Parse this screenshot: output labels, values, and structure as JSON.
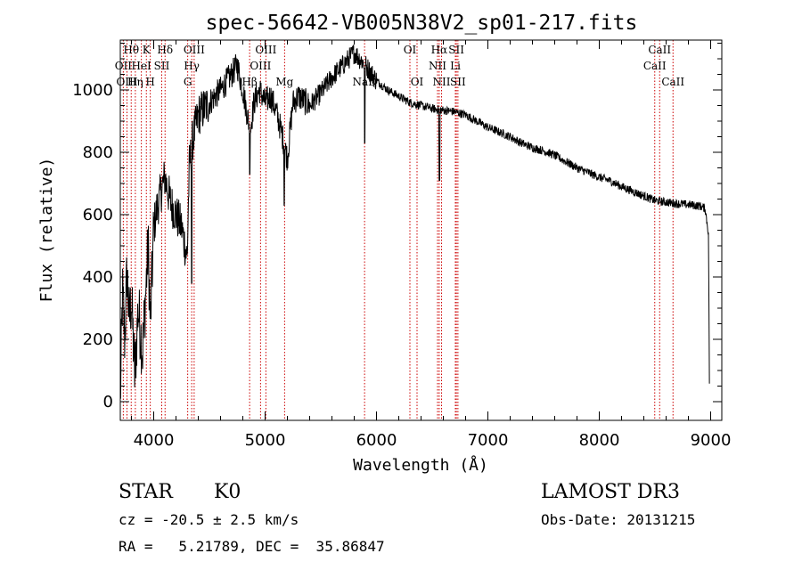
{
  "chart_data": {
    "type": "line",
    "title": "spec-56642-VB005N38V2_sp01-217.fits",
    "xlabel": "Wavelength (Å)",
    "ylabel": "Flux (relative)",
    "xlim": [
      3700,
      9100
    ],
    "ylim": [
      -60,
      1160
    ],
    "xticks": [
      4000,
      5000,
      6000,
      7000,
      8000,
      9000
    ],
    "yticks": [
      0,
      200,
      400,
      600,
      800,
      1000
    ],
    "grid": false,
    "line_color": "#000000",
    "marker_color": "#cc0000",
    "spectrum_anchors": [
      [
        3700,
        0
      ],
      [
        3720,
        350
      ],
      [
        3740,
        200
      ],
      [
        3760,
        420
      ],
      [
        3780,
        260
      ],
      [
        3800,
        330
      ],
      [
        3830,
        80
      ],
      [
        3860,
        300
      ],
      [
        3900,
        160
      ],
      [
        3950,
        500
      ],
      [
        3970,
        250
      ],
      [
        4000,
        560
      ],
      [
        4030,
        620
      ],
      [
        4070,
        680
      ],
      [
        4100,
        720
      ],
      [
        4150,
        640
      ],
      [
        4200,
        600
      ],
      [
        4250,
        560
      ],
      [
        4300,
        460
      ],
      [
        4320,
        760
      ],
      [
        4350,
        840
      ],
      [
        4400,
        920
      ],
      [
        4500,
        960
      ],
      [
        4600,
        1000
      ],
      [
        4700,
        1050
      ],
      [
        4750,
        1080
      ],
      [
        4800,
        1000
      ],
      [
        4850,
        900
      ],
      [
        4870,
        880
      ],
      [
        4900,
        960
      ],
      [
        4950,
        1000
      ],
      [
        5000,
        960
      ],
      [
        5050,
        980
      ],
      [
        5100,
        930
      ],
      [
        5150,
        860
      ],
      [
        5200,
        780
      ],
      [
        5250,
        960
      ],
      [
        5300,
        980
      ],
      [
        5400,
        950
      ],
      [
        5500,
        990
      ],
      [
        5600,
        1040
      ],
      [
        5700,
        1080
      ],
      [
        5800,
        1120
      ],
      [
        5850,
        1100
      ],
      [
        5900,
        1080
      ],
      [
        6000,
        1030
      ],
      [
        6100,
        1000
      ],
      [
        6200,
        980
      ],
      [
        6300,
        960
      ],
      [
        6400,
        950
      ],
      [
        6500,
        940
      ],
      [
        6600,
        935
      ],
      [
        6700,
        930
      ],
      [
        6800,
        920
      ],
      [
        6900,
        900
      ],
      [
        7000,
        880
      ],
      [
        7100,
        865
      ],
      [
        7200,
        850
      ],
      [
        7300,
        830
      ],
      [
        7400,
        815
      ],
      [
        7500,
        805
      ],
      [
        7600,
        790
      ],
      [
        7700,
        770
      ],
      [
        7800,
        750
      ],
      [
        7900,
        735
      ],
      [
        8000,
        720
      ],
      [
        8100,
        708
      ],
      [
        8200,
        690
      ],
      [
        8300,
        675
      ],
      [
        8400,
        660
      ],
      [
        8500,
        645
      ],
      [
        8600,
        640
      ],
      [
        8700,
        635
      ],
      [
        8800,
        632
      ],
      [
        8900,
        628
      ],
      [
        8950,
        620
      ],
      [
        8980,
        540
      ],
      [
        8990,
        0
      ]
    ],
    "absorption_dips": [
      [
        4340,
        380
      ],
      [
        4862,
        730
      ],
      [
        5172,
        630
      ],
      [
        5894,
        830
      ],
      [
        6565,
        710
      ]
    ],
    "line_markers": [
      {
        "label": "Hθ",
        "x": 3798,
        "row": 0
      },
      {
        "label": "OII",
        "x": 3727,
        "row": 1
      },
      {
        "label": "OIII",
        "x": 3760,
        "row": 2
      },
      {
        "label": "K",
        "x": 3934,
        "row": 0
      },
      {
        "label": "HeI",
        "x": 3889,
        "row": 1
      },
      {
        "label": "Hη",
        "x": 3835,
        "row": 2
      },
      {
        "label": "Hδ",
        "x": 4102,
        "row": 0
      },
      {
        "label": "SII",
        "x": 4072,
        "row": 1
      },
      {
        "label": "H",
        "x": 3969,
        "row": 2
      },
      {
        "label": "OIII",
        "x": 4363,
        "row": 0
      },
      {
        "label": "Hγ",
        "x": 4341,
        "row": 1
      },
      {
        "label": "G",
        "x": 4305,
        "row": 2
      },
      {
        "label": "OIII",
        "x": 5007,
        "row": 0
      },
      {
        "label": "OIII",
        "x": 4959,
        "row": 1
      },
      {
        "label": "Hβ",
        "x": 4861,
        "row": 2
      },
      {
        "label": "Mg",
        "x": 5175,
        "row": 2
      },
      {
        "label": "NaD",
        "x": 5893,
        "row": 2
      },
      {
        "label": "OI",
        "x": 6300,
        "row": 0
      },
      {
        "label": "OI",
        "x": 6364,
        "row": 2
      },
      {
        "label": "Hα",
        "x": 6563,
        "row": 0
      },
      {
        "label": "NII",
        "x": 6548,
        "row": 1
      },
      {
        "label": "NII",
        "x": 6584,
        "row": 2
      },
      {
        "label": "SII",
        "x": 6717,
        "row": 0
      },
      {
        "label": "Li",
        "x": 6708,
        "row": 1
      },
      {
        "label": "SII",
        "x": 6731,
        "row": 2
      },
      {
        "label": "CaII",
        "x": 8542,
        "row": 0
      },
      {
        "label": "CaII",
        "x": 8498,
        "row": 1
      },
      {
        "label": "CaII",
        "x": 8662,
        "row": 2
      }
    ]
  },
  "info": {
    "object_class": "STAR",
    "subclass": "K0",
    "survey": "LAMOST DR3",
    "redshift_line": "cz = -20.5 ± 2.5 km/s",
    "obs_date_line": "Obs-Date: 20131215",
    "coords_line": "RA =   5.21789, DEC =  35.86847"
  }
}
